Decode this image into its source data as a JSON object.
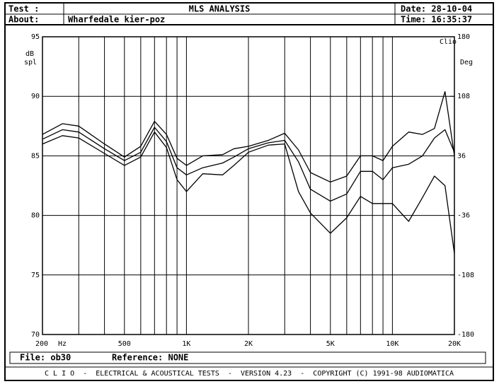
{
  "header": {
    "test_label": "Test :",
    "title": "MLS ANALYSIS",
    "date": "Date: 28-10-04",
    "about_label": "About:",
    "about": "Wharfedale kier-poz",
    "time": "Time: 16:35:37"
  },
  "footer": {
    "file": "File: ob30",
    "reference": "Reference: NONE",
    "banner": "C L I O  -  ELECTRICAL & ACOUSTICAL TESTS  -  VERSION 4.23  -  COPYRIGHT (C) 1991-98 AUDIOMATICA"
  },
  "chart_data": {
    "type": "line",
    "y_label_top": "dB",
    "y_label_bottom": "spl",
    "y2_label": "Deg",
    "brand": "Clio",
    "x_unit": "Hz",
    "log_x": true,
    "grid": true,
    "color": "#000000",
    "xlim": [
      200,
      20000
    ],
    "xticks": [
      200,
      500,
      {
        "value": 1000,
        "label": "1K"
      },
      {
        "value": 2000,
        "label": "2K"
      },
      {
        "value": 5000,
        "label": "5K"
      },
      {
        "value": 10000,
        "label": "10K"
      },
      {
        "value": 20000,
        "label": "20K"
      }
    ],
    "xminor": [
      300,
      400,
      600,
      700,
      800,
      900,
      3000,
      4000,
      6000,
      7000,
      8000,
      9000
    ],
    "ylim": [
      70,
      95
    ],
    "yticks": [
      70,
      75,
      80,
      85,
      90,
      95
    ],
    "y2lim": [
      -180,
      180
    ],
    "y2ticks": [
      -180,
      -108,
      -36,
      36,
      108,
      180
    ],
    "x": [
      200,
      250,
      300,
      400,
      500,
      600,
      700,
      800,
      900,
      1000,
      1200,
      1500,
      1700,
      2000,
      2500,
      3000,
      3500,
      4000,
      5000,
      6000,
      7000,
      8000,
      9000,
      10000,
      12000,
      14000,
      16000,
      18000,
      20000
    ],
    "series": [
      {
        "color": "#000000",
        "values": [
          86.8,
          87.7,
          87.5,
          86.0,
          84.9,
          85.8,
          87.9,
          86.8,
          84.8,
          84.2,
          85.0,
          85.1,
          85.6,
          85.8,
          86.3,
          86.9,
          85.5,
          83.6,
          82.8,
          83.3,
          85.0,
          85.0,
          84.6,
          85.8,
          87.0,
          86.8,
          87.3,
          90.4,
          85.0
        ]
      },
      {
        "color": "#000000",
        "values": [
          86.4,
          87.2,
          87.0,
          85.6,
          84.6,
          85.3,
          87.4,
          86.2,
          84.0,
          83.4,
          84.0,
          84.4,
          84.9,
          85.6,
          86.1,
          86.3,
          84.5,
          82.2,
          81.2,
          81.8,
          83.7,
          83.7,
          83.0,
          84.0,
          84.3,
          85.0,
          86.5,
          87.2,
          85.3
        ]
      },
      {
        "color": "#000000",
        "values": [
          86.0,
          86.7,
          86.5,
          85.2,
          84.2,
          84.9,
          87.0,
          85.7,
          83.0,
          82.0,
          83.5,
          83.4,
          84.2,
          85.3,
          85.9,
          86.0,
          82.0,
          80.2,
          78.5,
          79.8,
          81.6,
          81.0,
          81.0,
          81.0,
          79.5,
          81.5,
          83.3,
          82.5,
          76.8
        ]
      }
    ]
  }
}
